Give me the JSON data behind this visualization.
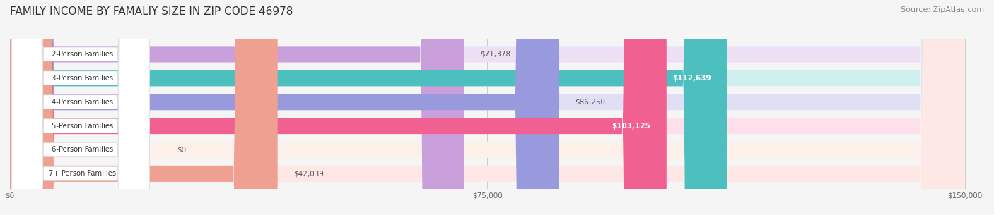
{
  "title": "FAMILY INCOME BY FAMALIY SIZE IN ZIP CODE 46978",
  "source": "Source: ZipAtlas.com",
  "categories": [
    "2-Person Families",
    "3-Person Families",
    "4-Person Families",
    "5-Person Families",
    "6-Person Families",
    "7+ Person Families"
  ],
  "values": [
    71378,
    112639,
    86250,
    103125,
    0,
    42039
  ],
  "bar_colors": [
    "#c9a0dc",
    "#4dbfbf",
    "#9999dd",
    "#f06090",
    "#f5c89a",
    "#f0a090"
  ],
  "bar_bg_colors": [
    "#ede0f5",
    "#d0f0f0",
    "#e0e0f5",
    "#fde0ec",
    "#fdf0e8",
    "#fde8e5"
  ],
  "value_labels": [
    "$71,378",
    "$112,639",
    "$86,250",
    "$103,125",
    "$0",
    "$42,039"
  ],
  "label_inside": [
    false,
    true,
    false,
    true,
    false,
    false
  ],
  "xmax": 150000,
  "xtick_labels": [
    "$0",
    "$75,000",
    "$150,000"
  ],
  "background_color": "#f5f5f5",
  "title_fontsize": 11,
  "source_fontsize": 8
}
